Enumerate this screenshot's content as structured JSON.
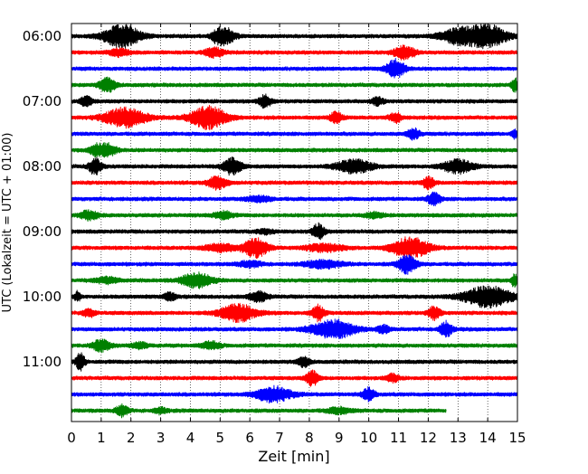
{
  "chart_data": {
    "type": "line",
    "title": "",
    "xlabel": "Zeit  [min]",
    "ylabel": "UTC (Lokalzeit = UTC + 01:00)",
    "xlim": [
      0,
      15
    ],
    "x_ticks": [
      "0",
      "1",
      "2",
      "3",
      "4",
      "5",
      "6",
      "7",
      "8",
      "9",
      "10",
      "11",
      "12",
      "13",
      "14",
      "15"
    ],
    "y_tick_labels": [
      "06:00",
      "07:00",
      "08:00",
      "09:00",
      "10:00",
      "11:00"
    ],
    "x_grid": "dotted vertical lines at each minute",
    "trace_colors": [
      "#000000",
      "#ff0000",
      "#0000ff",
      "#008000"
    ],
    "trace_order": "four 15-minute traces per hour, top to bottom: black, red, blue, green",
    "trace_count": 24,
    "last_trace_end_min": 12.6,
    "series": [
      {
        "start": "06:00",
        "color": "#000000",
        "bursts": [
          [
            1.7,
            0.6,
            12
          ],
          [
            13.0,
            0.6,
            8
          ],
          [
            14.0,
            0.6,
            12
          ],
          [
            5.2,
            0.3,
            8
          ],
          [
            4.9,
            0.2,
            6
          ]
        ]
      },
      {
        "start": "06:15",
        "color": "#ff0000",
        "bursts": [
          [
            11.2,
            0.35,
            7
          ],
          [
            4.8,
            0.3,
            5
          ],
          [
            1.6,
            0.3,
            4
          ]
        ]
      },
      {
        "start": "06:30",
        "color": "#0000ff",
        "bursts": [
          [
            10.9,
            0.3,
            10
          ]
        ]
      },
      {
        "start": "06:45",
        "color": "#008000",
        "bursts": [
          [
            1.2,
            0.25,
            8
          ],
          [
            14.9,
            0.1,
            8
          ]
        ]
      },
      {
        "start": "07:00",
        "color": "#000000",
        "bursts": [
          [
            6.5,
            0.2,
            7
          ],
          [
            0.5,
            0.2,
            5
          ],
          [
            10.3,
            0.2,
            4
          ]
        ]
      },
      {
        "start": "07:15",
        "color": "#ff0000",
        "bursts": [
          [
            1.8,
            0.7,
            10
          ],
          [
            4.6,
            0.6,
            12
          ],
          [
            8.9,
            0.2,
            6
          ],
          [
            10.9,
            0.2,
            5
          ]
        ]
      },
      {
        "start": "07:30",
        "color": "#0000ff",
        "bursts": [
          [
            11.5,
            0.2,
            6
          ],
          [
            14.9,
            0.1,
            4
          ]
        ]
      },
      {
        "start": "07:45",
        "color": "#008000",
        "bursts": [
          [
            1.2,
            0.3,
            7
          ],
          [
            0.8,
            0.2,
            5
          ]
        ]
      },
      {
        "start": "08:00",
        "color": "#000000",
        "bursts": [
          [
            0.8,
            0.2,
            9
          ],
          [
            5.4,
            0.3,
            9
          ],
          [
            9.5,
            0.6,
            7
          ],
          [
            13.0,
            0.5,
            7
          ]
        ]
      },
      {
        "start": "08:15",
        "color": "#ff0000",
        "bursts": [
          [
            4.9,
            0.3,
            7
          ],
          [
            12.0,
            0.2,
            6
          ]
        ]
      },
      {
        "start": "08:30",
        "color": "#0000ff",
        "bursts": [
          [
            12.2,
            0.2,
            7
          ],
          [
            6.3,
            0.4,
            3
          ]
        ]
      },
      {
        "start": "08:45",
        "color": "#008000",
        "bursts": [
          [
            0.6,
            0.3,
            5
          ],
          [
            5.1,
            0.3,
            4
          ],
          [
            10.2,
            0.3,
            3
          ]
        ]
      },
      {
        "start": "09:00",
        "color": "#000000",
        "bursts": [
          [
            8.3,
            0.2,
            8
          ],
          [
            6.5,
            0.3,
            2
          ]
        ]
      },
      {
        "start": "09:15",
        "color": "#ff0000",
        "bursts": [
          [
            6.2,
            0.4,
            10
          ],
          [
            11.4,
            0.6,
            11
          ],
          [
            8.5,
            0.6,
            4
          ],
          [
            5.0,
            0.5,
            4
          ]
        ]
      },
      {
        "start": "09:30",
        "color": "#0000ff",
        "bursts": [
          [
            11.3,
            0.3,
            10
          ],
          [
            8.5,
            0.6,
            4
          ],
          [
            6.0,
            0.4,
            3
          ]
        ]
      },
      {
        "start": "09:45",
        "color": "#008000",
        "bursts": [
          [
            4.2,
            0.5,
            8
          ],
          [
            1.2,
            0.4,
            3
          ],
          [
            14.9,
            0.1,
            7
          ]
        ]
      },
      {
        "start": "10:00",
        "color": "#000000",
        "bursts": [
          [
            14.0,
            0.8,
            11
          ],
          [
            6.3,
            0.3,
            5
          ],
          [
            3.3,
            0.2,
            4
          ],
          [
            0.2,
            0.1,
            5
          ]
        ]
      },
      {
        "start": "10:15",
        "color": "#ff0000",
        "bursts": [
          [
            5.6,
            0.6,
            9
          ],
          [
            8.3,
            0.2,
            8
          ],
          [
            12.2,
            0.2,
            7
          ],
          [
            0.6,
            0.2,
            4
          ]
        ]
      },
      {
        "start": "10:30",
        "color": "#0000ff",
        "bursts": [
          [
            8.8,
            0.7,
            10
          ],
          [
            12.6,
            0.2,
            8
          ],
          [
            10.5,
            0.2,
            4
          ]
        ]
      },
      {
        "start": "10:45",
        "color": "#008000",
        "bursts": [
          [
            1.0,
            0.3,
            6
          ],
          [
            4.7,
            0.3,
            4
          ],
          [
            2.3,
            0.3,
            3
          ]
        ]
      },
      {
        "start": "11:00",
        "color": "#000000",
        "bursts": [
          [
            0.3,
            0.15,
            9
          ],
          [
            7.8,
            0.2,
            5
          ]
        ]
      },
      {
        "start": "11:15",
        "color": "#ff0000",
        "bursts": [
          [
            8.1,
            0.2,
            8
          ],
          [
            10.8,
            0.2,
            4
          ]
        ]
      },
      {
        "start": "11:30",
        "color": "#0000ff",
        "bursts": [
          [
            6.8,
            0.6,
            8
          ],
          [
            10.0,
            0.2,
            7
          ]
        ]
      },
      {
        "start": "11:45",
        "color": "#008000",
        "bursts": [
          [
            1.7,
            0.2,
            6
          ],
          [
            3.0,
            0.2,
            3
          ],
          [
            9.0,
            0.4,
            3
          ]
        ]
      }
    ]
  }
}
